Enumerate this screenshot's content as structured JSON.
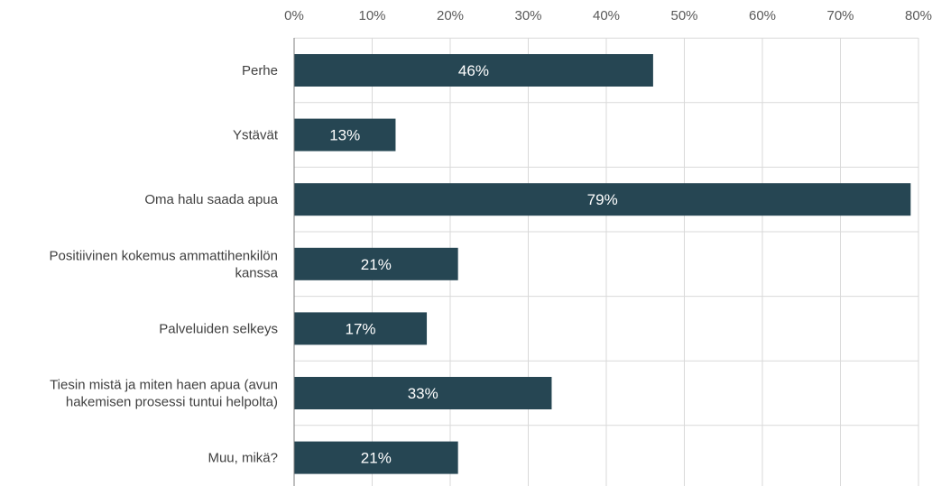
{
  "chart_data": {
    "type": "bar",
    "orientation": "horizontal",
    "categories": [
      [
        "Perhe"
      ],
      [
        "Ystävät"
      ],
      [
        "Oma halu saada apua"
      ],
      [
        "Positiivinen kokemus ammattihenkilön",
        "kanssa"
      ],
      [
        "Palveluiden selkeys"
      ],
      [
        "Tiesin mistä ja miten haen apua (avun",
        "hakemisen prosessi tuntui helpolta)"
      ],
      [
        "Muu, mikä?"
      ]
    ],
    "values": [
      46,
      13,
      79,
      21,
      17,
      33,
      21
    ],
    "data_labels": [
      "46%",
      "13%",
      "79%",
      "21%",
      "17%",
      "33%",
      "21%"
    ],
    "x_ticks": [
      "0%",
      "10%",
      "20%",
      "30%",
      "40%",
      "50%",
      "60%",
      "70%",
      "80%"
    ],
    "xlim": [
      0,
      80
    ],
    "x_axis_position": "top",
    "grid": true,
    "colors": {
      "bar": "#264653",
      "grid": "#d9d9d9",
      "axis": "#7f7f7f"
    }
  }
}
